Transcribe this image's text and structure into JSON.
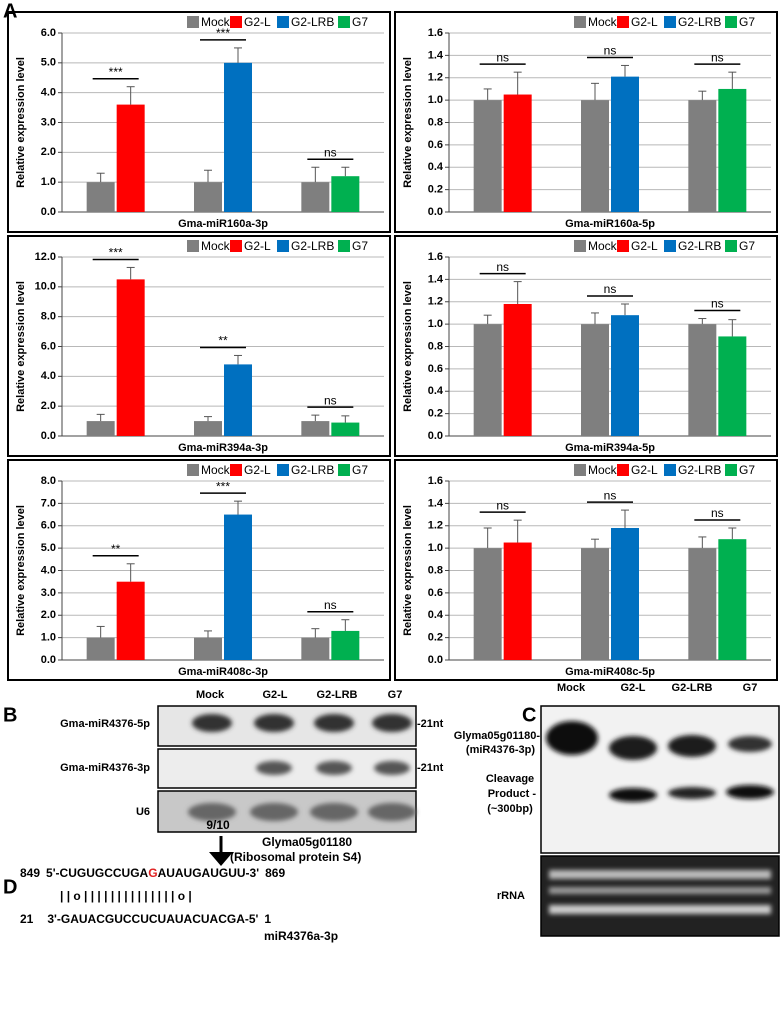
{
  "panel_labels": [
    "A",
    "B",
    "C",
    "D"
  ],
  "chart_data": [
    {
      "type": "bar",
      "xlabel": "Gma-miR160a-3p",
      "ylabel": "Relative expression level",
      "ylim": [
        0,
        6
      ],
      "yticks": [
        {
          "value": 0,
          "label": "0.0"
        },
        {
          "value": 1,
          "label": "1.0"
        },
        {
          "value": 2,
          "label": "2.0"
        },
        {
          "value": 3,
          "label": "3.0"
        },
        {
          "value": 4,
          "label": "4.0"
        },
        {
          "value": 5,
          "label": "5.0"
        },
        {
          "value": 6,
          "label": "6.0"
        }
      ],
      "grid": true,
      "legend": "upper right",
      "series": [
        {
          "name": "Mock",
          "color": "#7f7f7f",
          "values": [
            1.0,
            1.0,
            1.0
          ],
          "errors": [
            0.3,
            0.4,
            0.5
          ]
        },
        {
          "name": "G2-L",
          "color": "#ff0000",
          "values": [
            3.6,
            null,
            null
          ],
          "errors": [
            0.6,
            null,
            null
          ]
        },
        {
          "name": "G2-LRB",
          "color": "#0070c0",
          "values": [
            null,
            5.0,
            null
          ],
          "errors": [
            null,
            0.5,
            null
          ]
        },
        {
          "name": "G7",
          "color": "#00b050",
          "values": [
            null,
            null,
            1.2
          ],
          "errors": [
            null,
            null,
            0.3
          ]
        }
      ],
      "significance": [
        "***",
        "***",
        "ns"
      ]
    },
    {
      "type": "bar",
      "xlabel": "Gma-miR160a-5p",
      "ylabel": "Relative expression level",
      "ylim": [
        0,
        1.6
      ],
      "yticks": [
        {
          "value": 0,
          "label": "0.0"
        },
        0.2,
        0.4,
        0.6,
        0.8,
        {
          "value": 1,
          "label": "1.0"
        },
        1.2,
        1.4,
        1.6
      ],
      "grid": true,
      "legend": "upper right",
      "series": [
        {
          "name": "Mock",
          "color": "#7f7f7f",
          "values": [
            1.0,
            1.0,
            1.0
          ],
          "errors": [
            0.1,
            0.15,
            0.08
          ]
        },
        {
          "name": "G2-L",
          "color": "#ff0000",
          "values": [
            1.05,
            null,
            null
          ],
          "errors": [
            0.2,
            null,
            null
          ]
        },
        {
          "name": "G2-LRB",
          "color": "#0070c0",
          "values": [
            null,
            1.21,
            null
          ],
          "errors": [
            null,
            0.1,
            null
          ]
        },
        {
          "name": "G7",
          "color": "#00b050",
          "values": [
            null,
            null,
            1.1
          ],
          "errors": [
            null,
            null,
            0.15
          ]
        }
      ],
      "significance": [
        "ns",
        "ns",
        "ns"
      ]
    },
    {
      "type": "bar",
      "xlabel": "Gma-miR394a-3p",
      "ylabel": "Relative expression level",
      "ylim": [
        0,
        12
      ],
      "yticks": [
        {
          "value": 0,
          "label": "0.0"
        },
        {
          "value": 2,
          "label": "2.0"
        },
        {
          "value": 4,
          "label": "4.0"
        },
        {
          "value": 6,
          "label": "6.0"
        },
        {
          "value": 8,
          "label": "8.0"
        },
        {
          "value": 10,
          "label": "10.0"
        },
        {
          "value": 12,
          "label": "12.0"
        }
      ],
      "grid": true,
      "legend": "upper right",
      "series": [
        {
          "name": "Mock",
          "color": "#7f7f7f",
          "values": [
            1.0,
            1.0,
            1.0
          ],
          "errors": [
            0.45,
            0.3,
            0.4
          ]
        },
        {
          "name": "G2-L",
          "color": "#ff0000",
          "values": [
            10.5,
            null,
            null
          ],
          "errors": [
            0.8,
            null,
            null
          ]
        },
        {
          "name": "G2-LRB",
          "color": "#0070c0",
          "values": [
            null,
            4.8,
            null
          ],
          "errors": [
            null,
            0.6,
            null
          ]
        },
        {
          "name": "G7",
          "color": "#00b050",
          "values": [
            null,
            null,
            0.9
          ],
          "errors": [
            null,
            null,
            0.45
          ]
        }
      ],
      "significance": [
        "***",
        "**",
        "ns"
      ]
    },
    {
      "type": "bar",
      "xlabel": "Gma-miR394a-5p",
      "ylabel": "Relative expression level",
      "ylim": [
        0,
        1.6
      ],
      "yticks": [
        {
          "value": 0,
          "label": "0.0"
        },
        0.2,
        0.4,
        0.6,
        0.8,
        {
          "value": 1,
          "label": "1.0"
        },
        1.2,
        1.4,
        1.6
      ],
      "grid": true,
      "legend": "upper right",
      "series": [
        {
          "name": "Mock",
          "color": "#7f7f7f",
          "values": [
            1.0,
            1.0,
            1.0
          ],
          "errors": [
            0.08,
            0.1,
            0.05
          ]
        },
        {
          "name": "G2-L",
          "color": "#ff0000",
          "values": [
            1.18,
            null,
            null
          ],
          "errors": [
            0.2,
            null,
            null
          ]
        },
        {
          "name": "G2-LRB",
          "color": "#0070c0",
          "values": [
            null,
            1.08,
            null
          ],
          "errors": [
            null,
            0.1,
            null
          ]
        },
        {
          "name": "G7",
          "color": "#00b050",
          "values": [
            null,
            null,
            0.89
          ],
          "errors": [
            null,
            null,
            0.15
          ]
        }
      ],
      "significance": [
        "ns",
        "ns",
        "ns"
      ]
    },
    {
      "type": "bar",
      "xlabel": "Gma-miR408c-3p",
      "ylabel": "Relative expression level",
      "ylim": [
        0,
        8
      ],
      "yticks": [
        {
          "value": 0,
          "label": "0.0"
        },
        {
          "value": 1,
          "label": "1.0"
        },
        {
          "value": 2,
          "label": "2.0"
        },
        {
          "value": 3,
          "label": "3.0"
        },
        {
          "value": 4,
          "label": "4.0"
        },
        {
          "value": 5,
          "label": "5.0"
        },
        {
          "value": 6,
          "label": "6.0"
        },
        {
          "value": 7,
          "label": "7.0"
        },
        {
          "value": 8,
          "label": "8.0"
        }
      ],
      "grid": true,
      "legend": "upper right",
      "series": [
        {
          "name": "Mock",
          "color": "#7f7f7f",
          "values": [
            1.0,
            1.0,
            1.0
          ],
          "errors": [
            0.5,
            0.3,
            0.4
          ]
        },
        {
          "name": "G2-L",
          "color": "#ff0000",
          "values": [
            3.5,
            null,
            null
          ],
          "errors": [
            0.8,
            null,
            null
          ]
        },
        {
          "name": "G2-LRB",
          "color": "#0070c0",
          "values": [
            null,
            6.5,
            null
          ],
          "errors": [
            null,
            0.6,
            null
          ]
        },
        {
          "name": "G7",
          "color": "#00b050",
          "values": [
            null,
            null,
            1.3
          ],
          "errors": [
            null,
            null,
            0.5
          ]
        }
      ],
      "significance": [
        "**",
        "***",
        "ns"
      ]
    },
    {
      "type": "bar",
      "xlabel": "Gma-miR408c-5p",
      "ylabel": "Relative expression level",
      "ylim": [
        0,
        1.6
      ],
      "yticks": [
        {
          "value": 0,
          "label": "0.0"
        },
        0.2,
        0.4,
        0.6,
        0.8,
        {
          "value": 1,
          "label": "1.0"
        },
        1.2,
        1.4,
        1.6
      ],
      "grid": true,
      "legend": "upper right",
      "series": [
        {
          "name": "Mock",
          "color": "#7f7f7f",
          "values": [
            1.0,
            1.0,
            1.0
          ],
          "errors": [
            0.18,
            0.08,
            0.1
          ]
        },
        {
          "name": "G2-L",
          "color": "#ff0000",
          "values": [
            1.05,
            null,
            null
          ],
          "errors": [
            0.2,
            null,
            null
          ]
        },
        {
          "name": "G2-LRB",
          "color": "#0070c0",
          "values": [
            null,
            1.18,
            null
          ],
          "errors": [
            null,
            0.16,
            null
          ]
        },
        {
          "name": "G7",
          "color": "#00b050",
          "values": [
            null,
            null,
            1.08
          ],
          "errors": [
            null,
            null,
            0.1
          ]
        }
      ],
      "significance": [
        "ns",
        "ns",
        "ns"
      ]
    }
  ],
  "blot_b": {
    "lanes": [
      "Mock",
      "G2-L",
      "G2-LRB",
      "G7"
    ],
    "rows": [
      "Gma-miR4376-5p",
      "Gma-miR4376-3p",
      "U6"
    ],
    "size_marks": [
      "-21nt",
      "-21nt"
    ]
  },
  "blot_c": {
    "lanes": [
      "Mock",
      "G2-L",
      "G2-LRB",
      "G7"
    ],
    "target": [
      "Glyma05g01180-",
      "(miR4376-3p)"
    ],
    "cleavage": [
      "Cleavage",
      "Product -",
      "(~300bp)"
    ],
    "rrna": "rRNA"
  },
  "sequence_d": {
    "ratio": "9/10",
    "gene": "Glyma05g01180",
    "protein": "(Ribosomal protein S4)",
    "target_start": "849",
    "target_left": "5'-CUGUGCCUGA",
    "cleavage_base": "G",
    "target_right": "AUAUGAUGUU-3'",
    "target_end": "869",
    "pairing": "| | o | | | | | | | | | | | | | | o |",
    "mirna_start": "21",
    "mirna": "3'-GAUACGUCCUCUAUACUACGA-5'",
    "mirna_end": "1",
    "mirna_name": "miR4376a-3p"
  }
}
